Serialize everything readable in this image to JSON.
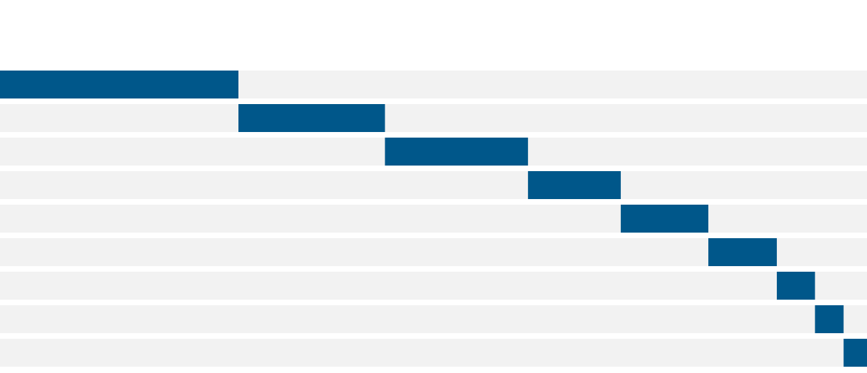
{
  "chart_data": {
    "type": "waterfall",
    "orientation": "horizontal",
    "values": [
      27.5,
      16.9,
      16.5,
      10.7,
      10.1,
      7.9,
      4.4,
      3.3,
      2.7
    ],
    "xlim": [
      0,
      100
    ],
    "color": "#00578a",
    "track_color": "#f2f2f2"
  }
}
